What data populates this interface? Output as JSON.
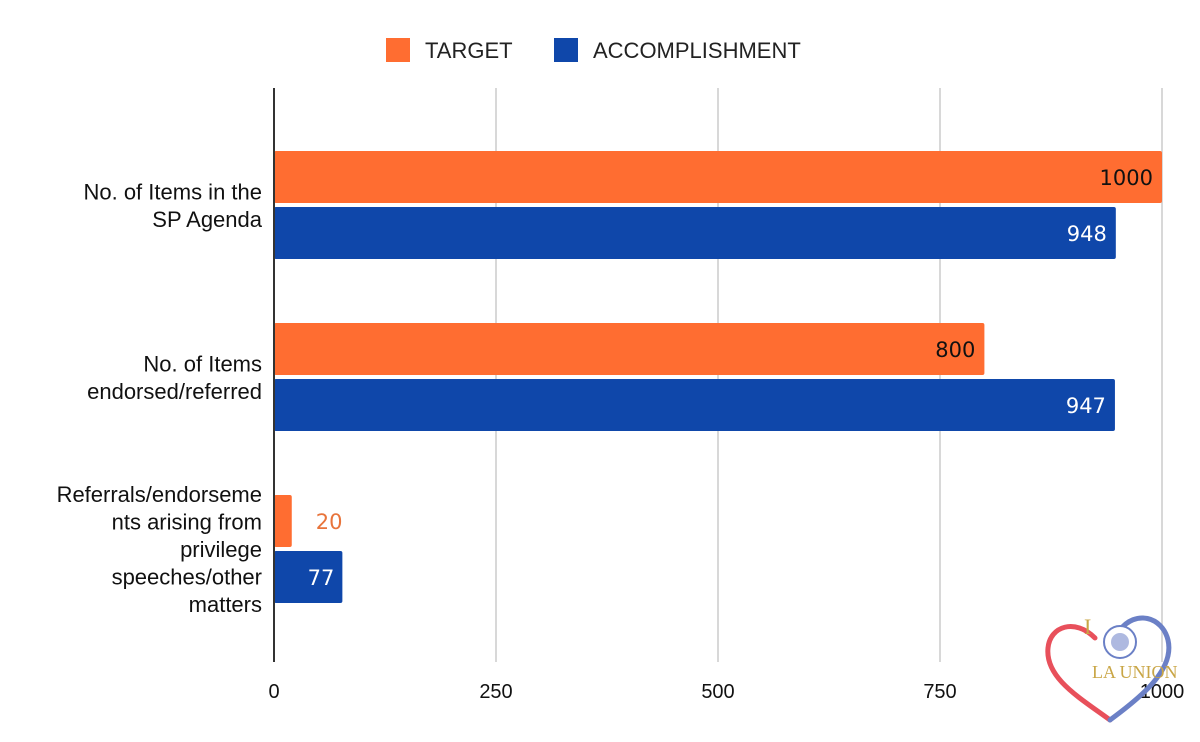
{
  "chart_data": {
    "type": "bar",
    "orientation": "horizontal",
    "categories": [
      [
        "No. of Items in the",
        "SP Agenda"
      ],
      [
        "No. of Items",
        "endorsed/referred"
      ],
      [
        "Referrals/endorseme",
        "nts arising from",
        "privilege",
        "speeches/other",
        "matters"
      ]
    ],
    "series": [
      {
        "name": "TARGET",
        "color": "#FF6D31",
        "values": [
          1000,
          800,
          20
        ]
      },
      {
        "name": "ACCOMPLISHMENT",
        "color": "#0F47AA",
        "values": [
          948,
          947,
          77
        ]
      }
    ],
    "xlim": [
      0,
      1000
    ],
    "xticks": [
      0,
      250,
      500,
      750,
      1000
    ],
    "grid": true,
    "legend": "top-center",
    "data_label_colors": {
      "inside_target": "#111111",
      "inside_accomplishment": "#ffffff",
      "outside_target": "#E8743B"
    }
  },
  "watermark": {
    "name": "la-union-logo",
    "text_i": "I",
    "text_name": "LA UNION",
    "colors": {
      "heart_left": "#E8505B",
      "heart_right": "#6B80C6",
      "text": "#C9A646"
    }
  }
}
